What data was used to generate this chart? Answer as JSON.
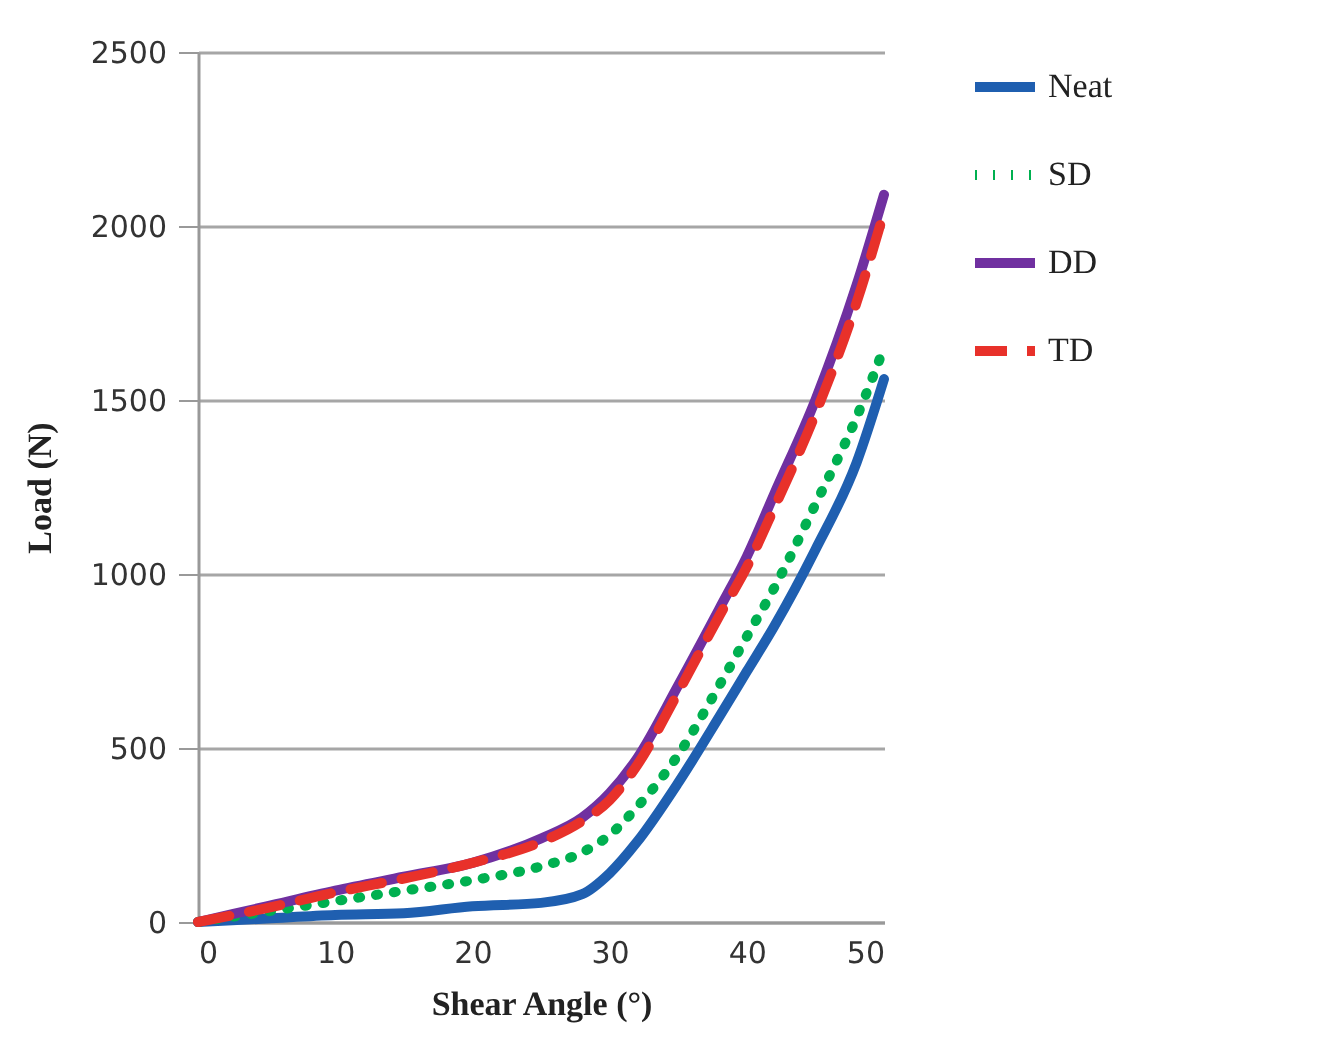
{
  "chart_data": {
    "type": "line",
    "xlabel": "Shear Angle (°)",
    "ylabel": "Load (N)",
    "x": [
      0,
      5,
      10,
      15,
      20,
      25,
      28,
      30,
      32,
      35,
      38,
      40,
      42,
      45,
      48,
      50
    ],
    "series": [
      {
        "name": "Neat",
        "color": "#1f5fb0",
        "line_style": "solid",
        "values": [
          0,
          10,
          20,
          25,
          45,
          55,
          80,
          140,
          230,
          400,
          590,
          720,
          850,
          1070,
          1320,
          1560
        ]
      },
      {
        "name": "SD",
        "color": "#00b050",
        "line_style": "dotted",
        "values": [
          0,
          30,
          60,
          90,
          120,
          160,
          200,
          250,
          330,
          480,
          680,
          820,
          960,
          1200,
          1450,
          1650
        ]
      },
      {
        "name": "DD",
        "color": "#7030a0",
        "line_style": "solid",
        "values": [
          0,
          45,
          90,
          130,
          170,
          240,
          300,
          370,
          470,
          680,
          900,
          1050,
          1230,
          1500,
          1830,
          2090
        ]
      },
      {
        "name": "TD",
        "color": "#e8312a",
        "line_style": "dashed",
        "values": [
          0,
          40,
          85,
          125,
          170,
          230,
          290,
          350,
          450,
          660,
          880,
          1020,
          1190,
          1460,
          1780,
          2040
        ]
      }
    ],
    "xlim": [
      0,
      50
    ],
    "xticks": [
      0,
      10,
      20,
      30,
      40,
      50
    ],
    "ylim": [
      0,
      2500
    ],
    "yticks": [
      0,
      500,
      1000,
      1500,
      2000,
      2500
    ],
    "grid": "y",
    "legend": "right",
    "marker": "none"
  }
}
